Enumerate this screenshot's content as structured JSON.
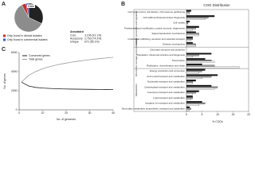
{
  "chart_data": [
    {
      "type": "pie",
      "label": "A",
      "categories": [
        "Core",
        null,
        "Only found in clinical isolates",
        "Only found in commensal isolates"
      ],
      "values": [
        32,
        60,
        5,
        3
      ],
      "colors": [
        "#222222",
        "#8c8c8c",
        "#d62728",
        "#2c62b8"
      ],
      "table": {
        "title": "Annotated",
        "rows": [
          [
            "Core",
            "3,106 (91.1%)"
          ],
          [
            "Accessory",
            "2,763 (74.3%)"
          ],
          [
            "Unique",
            "672 (55.1%)"
          ]
        ]
      }
    },
    {
      "type": "hbar",
      "label": "B",
      "title": "COG Distribution",
      "xlabel": "% COGs",
      "groups": [
        {
          "name": "Cellular processes and signaling",
          "start": 0,
          "end": 7
        },
        {
          "name": "Information storage and processing",
          "start": 7,
          "end": 11
        },
        {
          "name": "Metabolism",
          "start": 11,
          "end": 19
        }
      ],
      "categories": [
        "Cell cycle control, cell division, chromosome partitioning",
        "Cell wall/membrane/envelope biogenesis",
        "Cell motility",
        "Posttranslational modification, protein turnover, chaperones",
        "Signal transduction mechanisms",
        "Intracellular trafficking, secretion and vesicular transport",
        "Defense mechanisms",
        "Chromatin structure and dynamics",
        "Translation, ribosomal structure and biogenesis",
        "Transcription",
        "Replication, recombination and repair",
        "Energy production and conversion",
        "Amino acid transport and metabolism",
        "Nucleotide transport and metabolism",
        "Carbohydrate transport and metabolism",
        "Coenzyme transport and metabolism",
        "Lipid transport and metabolism",
        "Inorganic ion transport and metabolism",
        "Secondary metabolites biosynthesis, transport and catabolism"
      ],
      "series": [
        {
          "color": "#111111",
          "values": [
            1.5,
            9,
            1,
            4,
            3,
            2,
            2,
            0,
            8,
            6,
            5,
            6,
            10,
            3,
            8,
            4,
            2,
            5,
            1
          ]
        },
        {
          "color": "#9a9a9a",
          "values": [
            1,
            7,
            0.5,
            3,
            4,
            2,
            3,
            0,
            4,
            8,
            9,
            5,
            8,
            2,
            10,
            3,
            2,
            6,
            1.5
          ]
        },
        {
          "color": "#ffffff",
          "values": [
            0.8,
            6,
            0.5,
            2,
            4,
            1.5,
            3,
            0,
            2,
            9,
            17,
            4,
            5,
            2,
            9,
            2,
            1.5,
            4,
            1
          ]
        }
      ],
      "xlim": [
        0,
        20
      ],
      "xticks": [
        0,
        5,
        10,
        15,
        20
      ]
    },
    {
      "type": "line",
      "label": "C",
      "xlabel": "No. of genomes",
      "ylabel": "No. of genes",
      "x": [
        1,
        4,
        7,
        10,
        13,
        16,
        19,
        22,
        25,
        28,
        31,
        34,
        37,
        40
      ],
      "series": [
        {
          "name": "Conserved genes",
          "color": "#222222",
          "values": [
            2900,
            2500,
            2350,
            2280,
            2240,
            2210,
            2190,
            2170,
            2160,
            2150,
            2140,
            2135,
            2130,
            2125
          ]
        },
        {
          "name": "Total genes",
          "color": "#9a9a9a",
          "values": [
            2900,
            3600,
            4000,
            4300,
            4520,
            4700,
            4850,
            4980,
            5090,
            5190,
            5280,
            5360,
            5430,
            5500
          ]
        }
      ],
      "xlim": [
        0,
        40
      ],
      "xticks": [
        0,
        10,
        20,
        30,
        40
      ],
      "ylim": [
        0,
        6000
      ],
      "yticks": [
        0,
        2000,
        4000,
        6000
      ]
    }
  ]
}
